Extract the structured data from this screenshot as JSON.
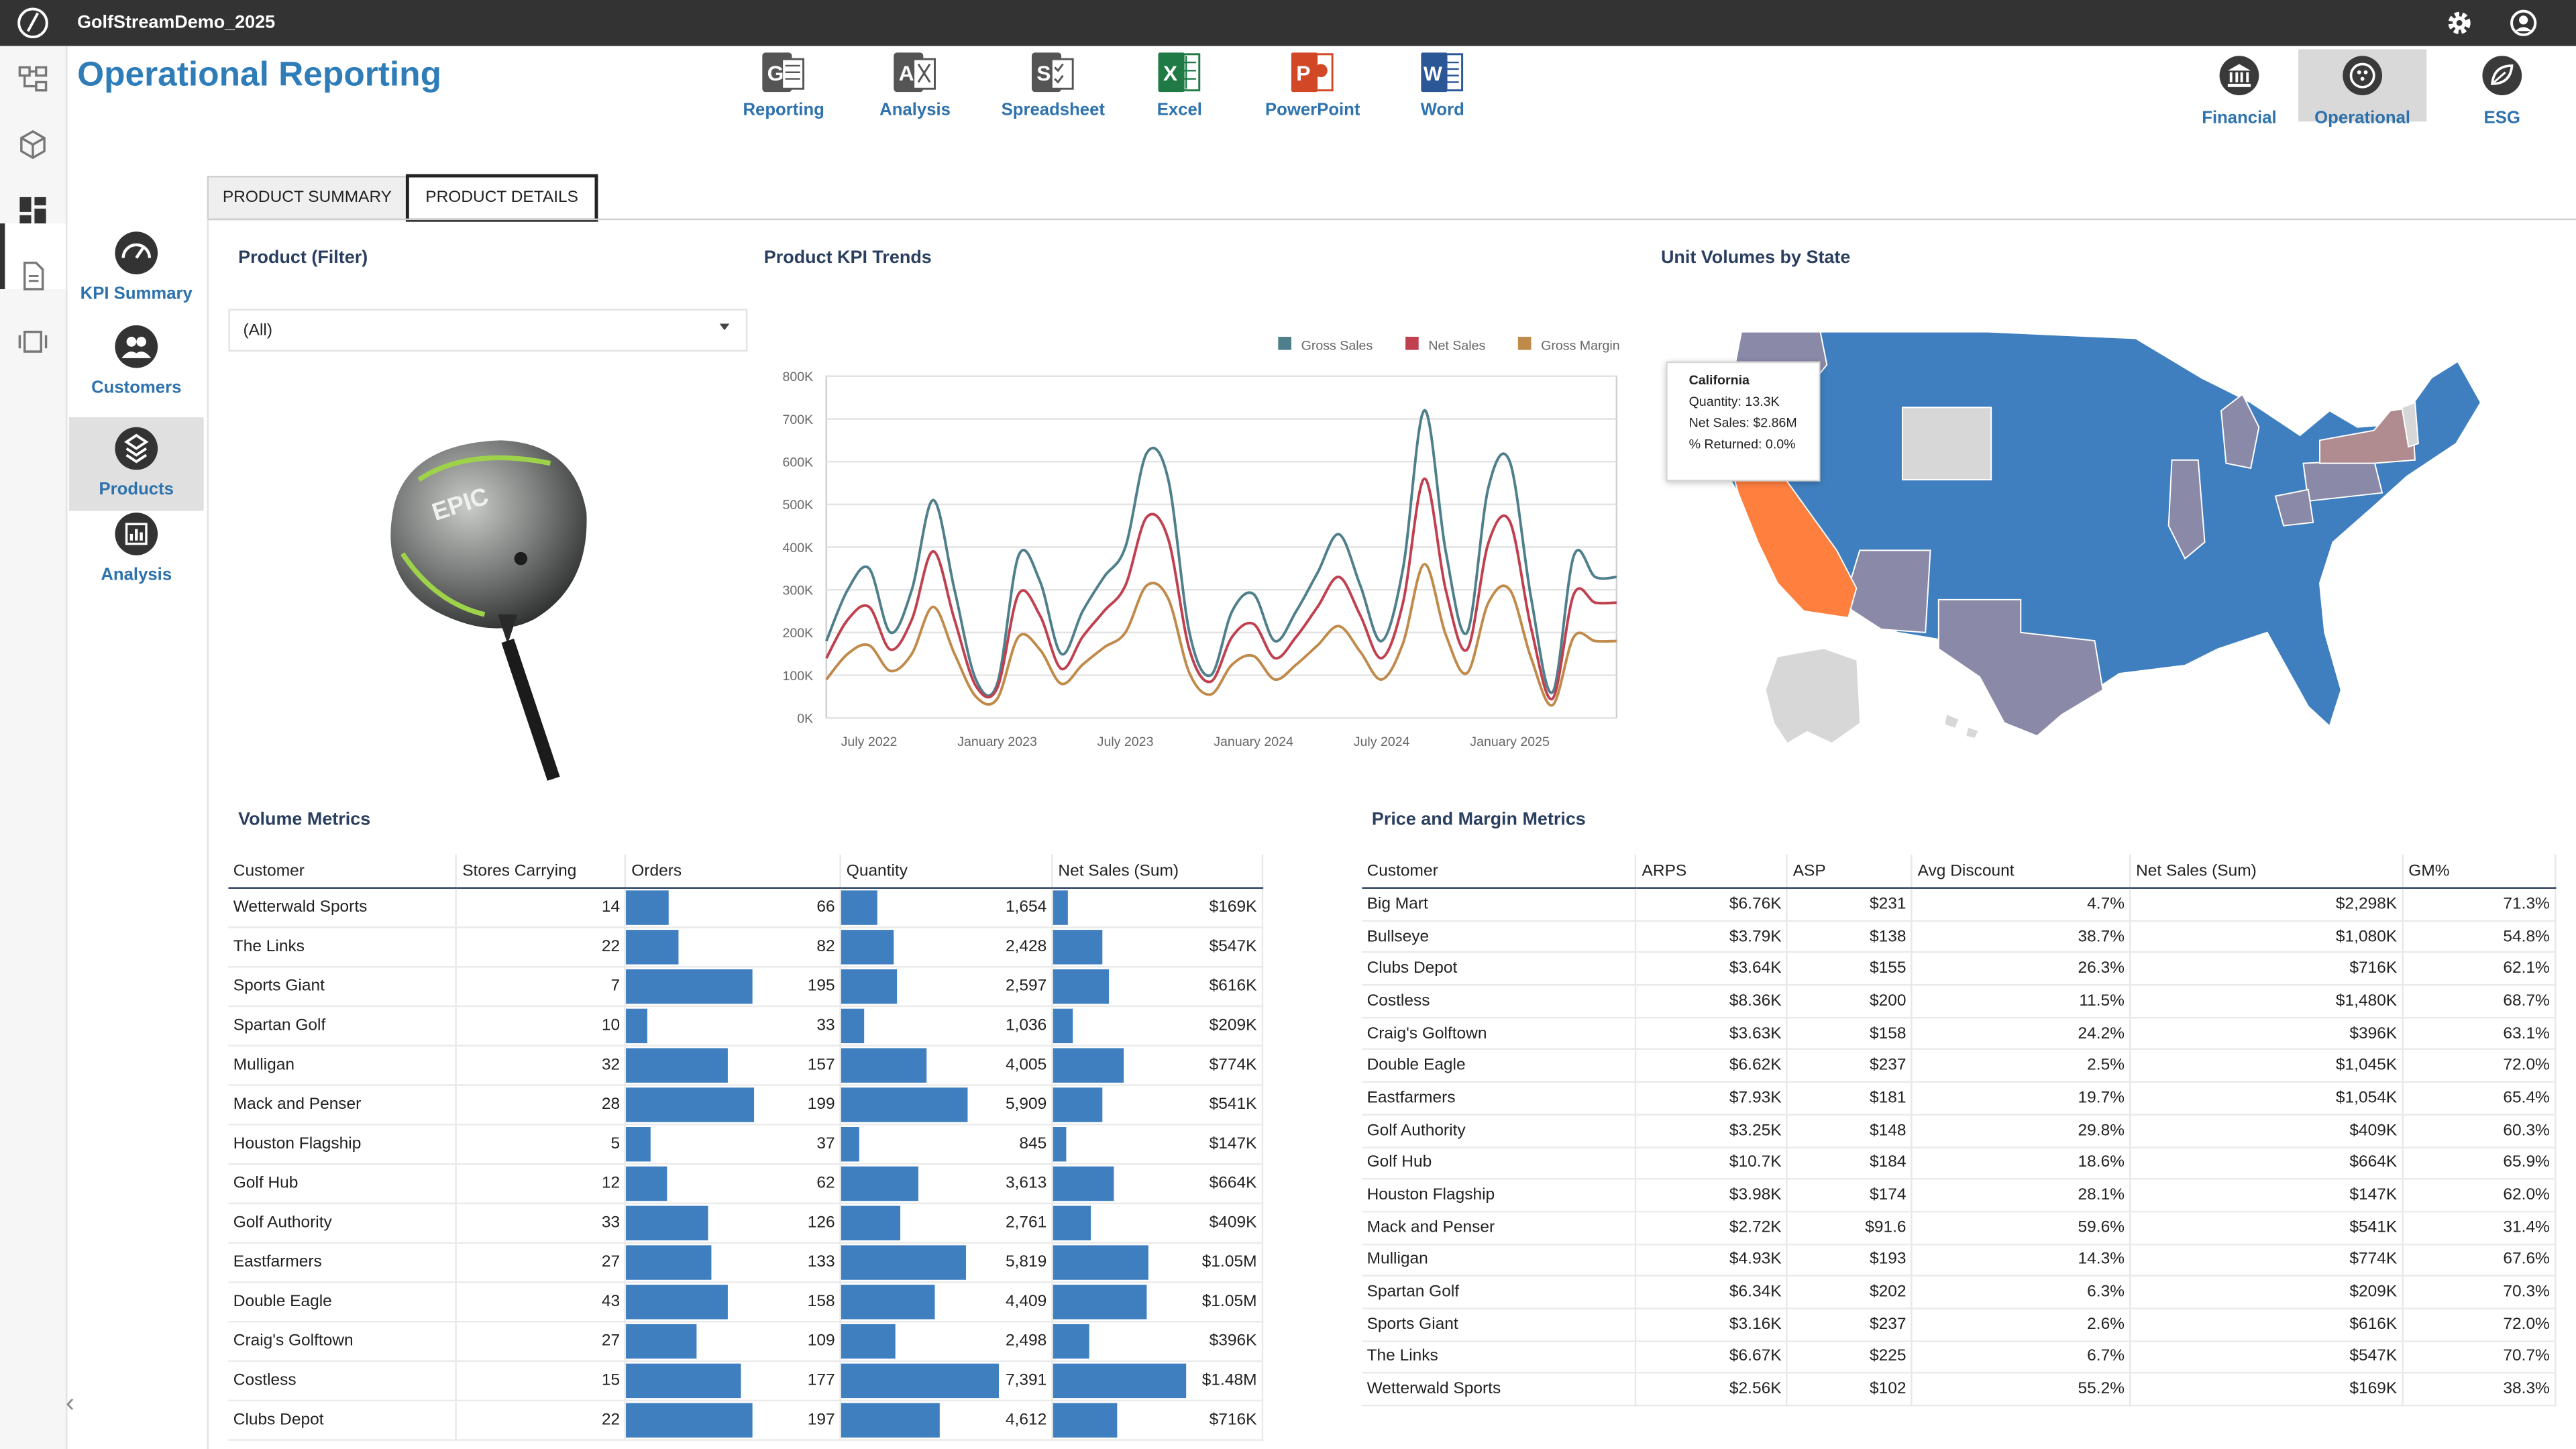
{
  "app": {
    "title": "GolfStreamDemo_2025"
  },
  "page": {
    "title": "Operational Reporting"
  },
  "exports": [
    {
      "label": "Reporting",
      "letter": "G",
      "color": "#555555"
    },
    {
      "label": "Analysis",
      "letter": "A",
      "color": "#555555"
    },
    {
      "label": "Spreadsheet",
      "letter": "S",
      "color": "#555555"
    },
    {
      "label": "Excel",
      "letter": "X",
      "color": "#1f7a45"
    },
    {
      "label": "PowerPoint",
      "letter": "P",
      "color": "#d24726"
    },
    {
      "label": "Word",
      "letter": "W",
      "color": "#2b5797"
    }
  ],
  "nav_right": [
    {
      "label": "Financial",
      "icon": "bank-icon"
    },
    {
      "label": "Operational",
      "icon": "golf-ball-icon",
      "active": true
    },
    {
      "label": "ESG",
      "icon": "leaf-icon"
    }
  ],
  "left_nav": [
    {
      "label": "KPI Summary",
      "icon": "gauge-icon"
    },
    {
      "label": "Customers",
      "icon": "customers-icon"
    },
    {
      "label": "Products",
      "icon": "products-icon",
      "active": true
    },
    {
      "label": "Analysis",
      "icon": "analysis-icon"
    }
  ],
  "tabs": [
    {
      "label": "PRODUCT SUMMARY"
    },
    {
      "label": "PRODUCT DETAILS",
      "active": true
    }
  ],
  "product_filter": {
    "title": "Product (Filter)",
    "value": "(All)"
  },
  "kpi_chart": {
    "title": "Product KPI Trends"
  },
  "map_panel": {
    "title": "Unit Volumes by State",
    "tooltip": {
      "state": "California",
      "quantity": "Quantity: 13.3K",
      "net_sales": "Net Sales: $2.86M",
      "returned": "% Returned: 0.0%"
    },
    "colors": {
      "high": "#ff7f3f",
      "mid": "#8a8aa8",
      "base": "#3f7fbf",
      "none": "#d7d7d7"
    }
  },
  "chart_data": {
    "type": "line",
    "ylim": [
      0,
      800000
    ],
    "yticks": [
      "0K",
      "100K",
      "200K",
      "300K",
      "400K",
      "500K",
      "600K",
      "700K",
      "800K"
    ],
    "xticks": [
      "July 2022",
      "January 2023",
      "July 2023",
      "January 2024",
      "July 2024",
      "January 2025"
    ],
    "x": [
      "2022-05",
      "2022-06",
      "2022-07",
      "2022-08",
      "2022-09",
      "2022-10",
      "2022-11",
      "2022-12",
      "2023-01",
      "2023-02",
      "2023-03",
      "2023-04",
      "2023-05",
      "2023-06",
      "2023-07",
      "2023-08",
      "2023-09",
      "2023-10",
      "2023-11",
      "2023-12",
      "2024-01",
      "2024-02",
      "2024-03",
      "2024-04",
      "2024-05",
      "2024-06",
      "2024-07",
      "2024-08",
      "2024-09",
      "2024-10",
      "2024-11",
      "2024-12",
      "2025-01",
      "2025-02",
      "2025-03",
      "2025-04",
      "2025-05",
      "2025-06"
    ],
    "series": [
      {
        "name": "Gross Sales",
        "color": "#4e7f8a",
        "values": [
          180000,
          300000,
          350000,
          200000,
          300000,
          510000,
          300000,
          90000,
          80000,
          380000,
          320000,
          150000,
          250000,
          330000,
          400000,
          620000,
          560000,
          200000,
          100000,
          250000,
          290000,
          180000,
          250000,
          340000,
          430000,
          310000,
          180000,
          350000,
          720000,
          390000,
          200000,
          540000,
          600000,
          280000,
          60000,
          380000,
          330000,
          330000
        ]
      },
      {
        "name": "Net Sales",
        "color": "#c0404f",
        "values": [
          140000,
          230000,
          260000,
          160000,
          230000,
          390000,
          230000,
          75000,
          70000,
          290000,
          240000,
          115000,
          190000,
          250000,
          310000,
          470000,
          420000,
          160000,
          85000,
          190000,
          220000,
          140000,
          190000,
          260000,
          330000,
          240000,
          140000,
          270000,
          560000,
          300000,
          160000,
          410000,
          460000,
          210000,
          45000,
          290000,
          270000,
          270000
        ]
      },
      {
        "name": "Gross Margin",
        "color": "#c08a4a",
        "values": [
          90000,
          150000,
          170000,
          110000,
          150000,
          260000,
          150000,
          50000,
          45000,
          190000,
          160000,
          80000,
          125000,
          165000,
          200000,
          310000,
          280000,
          105000,
          55000,
          125000,
          145000,
          90000,
          125000,
          170000,
          215000,
          155000,
          90000,
          175000,
          360000,
          195000,
          105000,
          270000,
          300000,
          140000,
          30000,
          190000,
          180000,
          180000
        ]
      }
    ]
  },
  "volume_metrics": {
    "title": "Volume Metrics",
    "columns": [
      "Customer",
      "Stores Carrying",
      "Orders",
      "Quantity",
      "Net Sales (Sum)"
    ],
    "rows": [
      {
        "customer": "Wetterwald Sports",
        "stores": "14",
        "orders": "66",
        "orders_v": 66,
        "quantity": "1,654",
        "quantity_v": 1654,
        "net": "$169K",
        "net_v": 169
      },
      {
        "customer": "The Links",
        "stores": "22",
        "orders": "82",
        "orders_v": 82,
        "quantity": "2,428",
        "quantity_v": 2428,
        "net": "$547K",
        "net_v": 547
      },
      {
        "customer": "Sports Giant",
        "stores": "7",
        "orders": "195",
        "orders_v": 195,
        "quantity": "2,597",
        "quantity_v": 2597,
        "net": "$616K",
        "net_v": 616
      },
      {
        "customer": "Spartan Golf",
        "stores": "10",
        "orders": "33",
        "orders_v": 33,
        "quantity": "1,036",
        "quantity_v": 1036,
        "net": "$209K",
        "net_v": 209
      },
      {
        "customer": "Mulligan",
        "stores": "32",
        "orders": "157",
        "orders_v": 157,
        "quantity": "4,005",
        "quantity_v": 4005,
        "net": "$774K",
        "net_v": 774
      },
      {
        "customer": "Mack and Penser",
        "stores": "28",
        "orders": "199",
        "orders_v": 199,
        "quantity": "5,909",
        "quantity_v": 5909,
        "net": "$541K",
        "net_v": 541
      },
      {
        "customer": "Houston Flagship",
        "stores": "5",
        "orders": "37",
        "orders_v": 37,
        "quantity": "845",
        "quantity_v": 845,
        "net": "$147K",
        "net_v": 147
      },
      {
        "customer": "Golf Hub",
        "stores": "12",
        "orders": "62",
        "orders_v": 62,
        "quantity": "3,613",
        "quantity_v": 3613,
        "net": "$664K",
        "net_v": 664
      },
      {
        "customer": "Golf Authority",
        "stores": "33",
        "orders": "126",
        "orders_v": 126,
        "quantity": "2,761",
        "quantity_v": 2761,
        "net": "$409K",
        "net_v": 409
      },
      {
        "customer": "Eastfarmers",
        "stores": "27",
        "orders": "133",
        "orders_v": 133,
        "quantity": "5,819",
        "quantity_v": 5819,
        "net": "$1.05M",
        "net_v": 1054
      },
      {
        "customer": "Double Eagle",
        "stores": "43",
        "orders": "158",
        "orders_v": 158,
        "quantity": "4,409",
        "quantity_v": 4409,
        "net": "$1.05M",
        "net_v": 1045
      },
      {
        "customer": "Craig's Golftown",
        "stores": "27",
        "orders": "109",
        "orders_v": 109,
        "quantity": "2,498",
        "quantity_v": 2498,
        "net": "$396K",
        "net_v": 396
      },
      {
        "customer": "Costless",
        "stores": "15",
        "orders": "177",
        "orders_v": 177,
        "quantity": "7,391",
        "quantity_v": 7391,
        "net": "$1.48M",
        "net_v": 1480
      },
      {
        "customer": "Clubs Depot",
        "stores": "22",
        "orders": "197",
        "orders_v": 197,
        "quantity": "4,612",
        "quantity_v": 4612,
        "net": "$716K",
        "net_v": 716
      }
    ]
  },
  "price_metrics": {
    "title": "Price and Margin Metrics",
    "columns": [
      "Customer",
      "ARPS",
      "ASP",
      "Avg Discount",
      "Net Sales (Sum)",
      "GM%"
    ],
    "rows": [
      [
        "Big Mart",
        "$6.76K",
        "$231",
        "4.7%",
        "$2,298K",
        "71.3%"
      ],
      [
        "Bullseye",
        "$3.79K",
        "$138",
        "38.7%",
        "$1,080K",
        "54.8%"
      ],
      [
        "Clubs Depot",
        "$3.64K",
        "$155",
        "26.3%",
        "$716K",
        "62.1%"
      ],
      [
        "Costless",
        "$8.36K",
        "$200",
        "11.5%",
        "$1,480K",
        "68.7%"
      ],
      [
        "Craig's Golftown",
        "$3.63K",
        "$158",
        "24.2%",
        "$396K",
        "63.1%"
      ],
      [
        "Double Eagle",
        "$6.62K",
        "$237",
        "2.5%",
        "$1,045K",
        "72.0%"
      ],
      [
        "Eastfarmers",
        "$7.93K",
        "$181",
        "19.7%",
        "$1,054K",
        "65.4%"
      ],
      [
        "Golf Authority",
        "$3.25K",
        "$148",
        "29.8%",
        "$409K",
        "60.3%"
      ],
      [
        "Golf Hub",
        "$10.7K",
        "$184",
        "18.6%",
        "$664K",
        "65.9%"
      ],
      [
        "Houston Flagship",
        "$3.98K",
        "$174",
        "28.1%",
        "$147K",
        "62.0%"
      ],
      [
        "Mack and Penser",
        "$2.72K",
        "$91.6",
        "59.6%",
        "$541K",
        "31.4%"
      ],
      [
        "Mulligan",
        "$4.93K",
        "$193",
        "14.3%",
        "$774K",
        "67.6%"
      ],
      [
        "Spartan Golf",
        "$6.34K",
        "$202",
        "6.3%",
        "$209K",
        "70.3%"
      ],
      [
        "Sports Giant",
        "$3.16K",
        "$237",
        "2.6%",
        "$616K",
        "72.0%"
      ],
      [
        "The Links",
        "$6.67K",
        "$225",
        "6.7%",
        "$547K",
        "70.7%"
      ],
      [
        "Wetterwald Sports",
        "$2.56K",
        "$102",
        "55.2%",
        "$169K",
        "38.3%"
      ]
    ]
  }
}
